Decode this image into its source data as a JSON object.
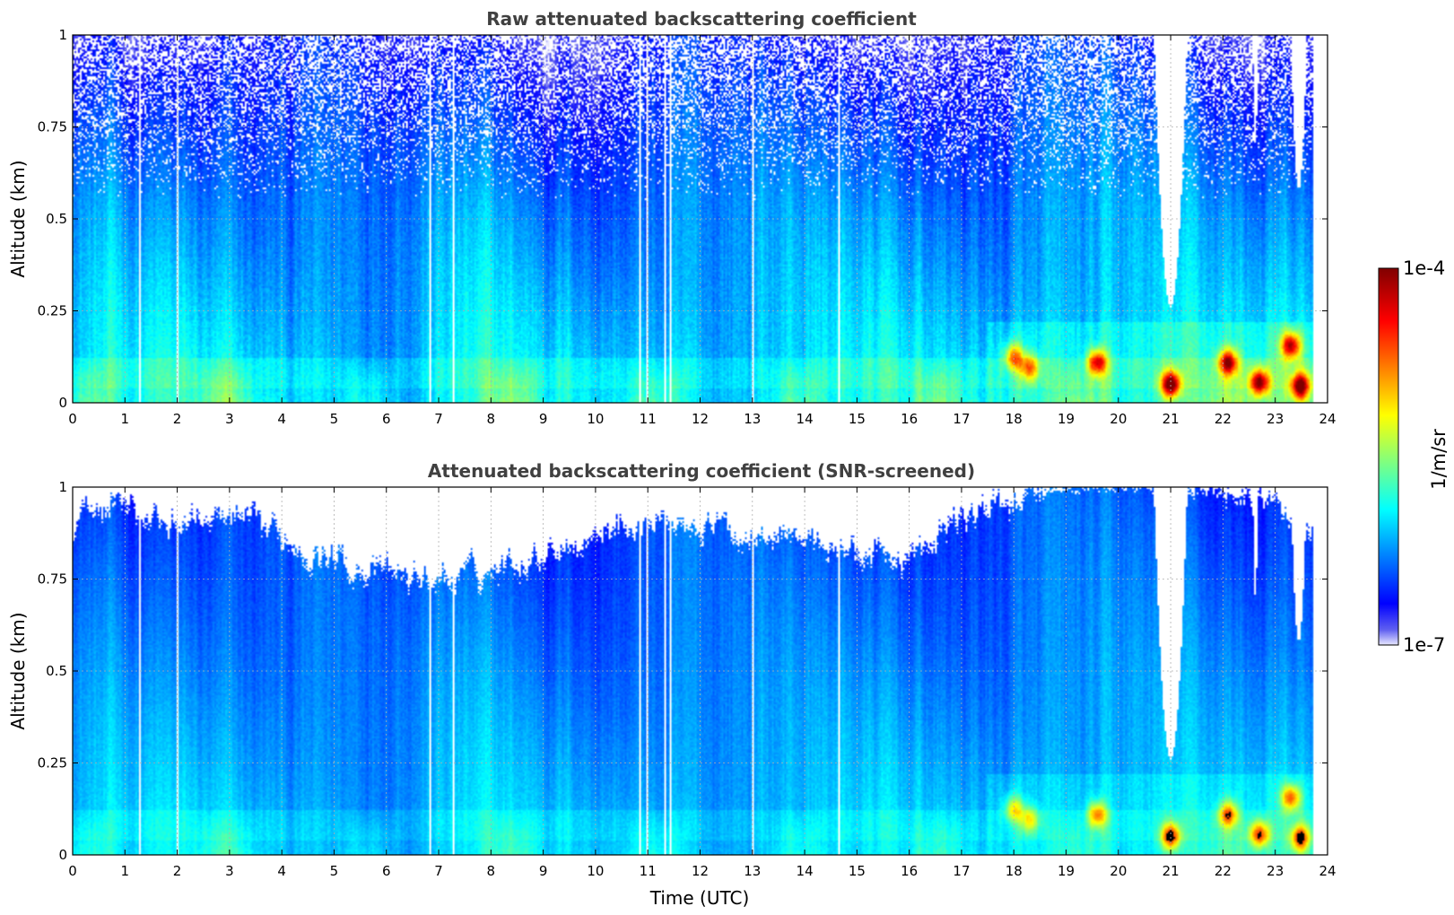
{
  "chart_data": [
    {
      "type": "heatmap",
      "title": "Raw attenuated backscattering coefficient",
      "xlabel": "",
      "ylabel": "Altitude (km)",
      "xlim": [
        0,
        24
      ],
      "ylim": [
        0,
        1
      ],
      "x_ticks": [
        "0",
        "1",
        "2",
        "3",
        "4",
        "5",
        "6",
        "7",
        "8",
        "9",
        "10",
        "11",
        "12",
        "13",
        "14",
        "15",
        "16",
        "17",
        "18",
        "19",
        "20",
        "21",
        "22",
        "23",
        "24"
      ],
      "y_ticks": [
        "0",
        "0.25",
        "0.5",
        "0.75",
        "1"
      ],
      "y_tick_values": [
        0,
        0.25,
        0.5,
        0.75,
        1
      ],
      "grid": true,
      "screened": false,
      "data_gaps_utc": [
        1.27,
        2.0,
        6.85,
        7.28,
        10.85,
        10.98,
        11.32,
        11.45,
        13.0,
        14.65
      ],
      "no_data_after_utc": 23.72,
      "cloud_free_notches": [
        {
          "center": 21.0,
          "half_width": 0.32,
          "bottom_km": 0.26
        },
        {
          "center": 22.62,
          "half_width": 0.05,
          "bottom_km": 0.7
        },
        {
          "center": 23.45,
          "half_width": 0.15,
          "bottom_km": 0.58
        }
      ],
      "strong_layers": [
        {
          "x": 21.0,
          "y": 0.05,
          "intensity": 1.0
        },
        {
          "x": 23.48,
          "y": 0.045,
          "intensity": 0.95
        },
        {
          "x": 22.7,
          "y": 0.055,
          "intensity": 0.9
        },
        {
          "x": 22.1,
          "y": 0.11,
          "intensity": 0.85
        },
        {
          "x": 23.3,
          "y": 0.155,
          "intensity": 0.85
        },
        {
          "x": 19.6,
          "y": 0.11,
          "intensity": 0.8
        },
        {
          "x": 18.0,
          "y": 0.125,
          "intensity": 0.6
        },
        {
          "x": 18.3,
          "y": 0.095,
          "intensity": 0.55
        }
      ]
    },
    {
      "type": "heatmap",
      "title": "Attenuated backscattering coefficient (SNR-screened)",
      "xlabel": "Time (UTC)",
      "ylabel": "Altitude (km)",
      "xlim": [
        0,
        24
      ],
      "ylim": [
        0,
        1
      ],
      "x_ticks": [
        "0",
        "1",
        "2",
        "3",
        "4",
        "5",
        "6",
        "7",
        "8",
        "9",
        "10",
        "11",
        "12",
        "13",
        "14",
        "15",
        "16",
        "17",
        "18",
        "19",
        "20",
        "21",
        "22",
        "23",
        "24"
      ],
      "y_ticks": [
        "0",
        "0.25",
        "0.5",
        "0.75",
        "1"
      ],
      "y_tick_values": [
        0,
        0.25,
        0.5,
        0.75,
        1
      ],
      "grid": true,
      "screened": true,
      "saturated_color": "#000000"
    }
  ],
  "colorbar": {
    "max_label": "1e-4",
    "min_label": "1e-7",
    "unit_label": "1/m/sr",
    "colormap": "jet"
  }
}
